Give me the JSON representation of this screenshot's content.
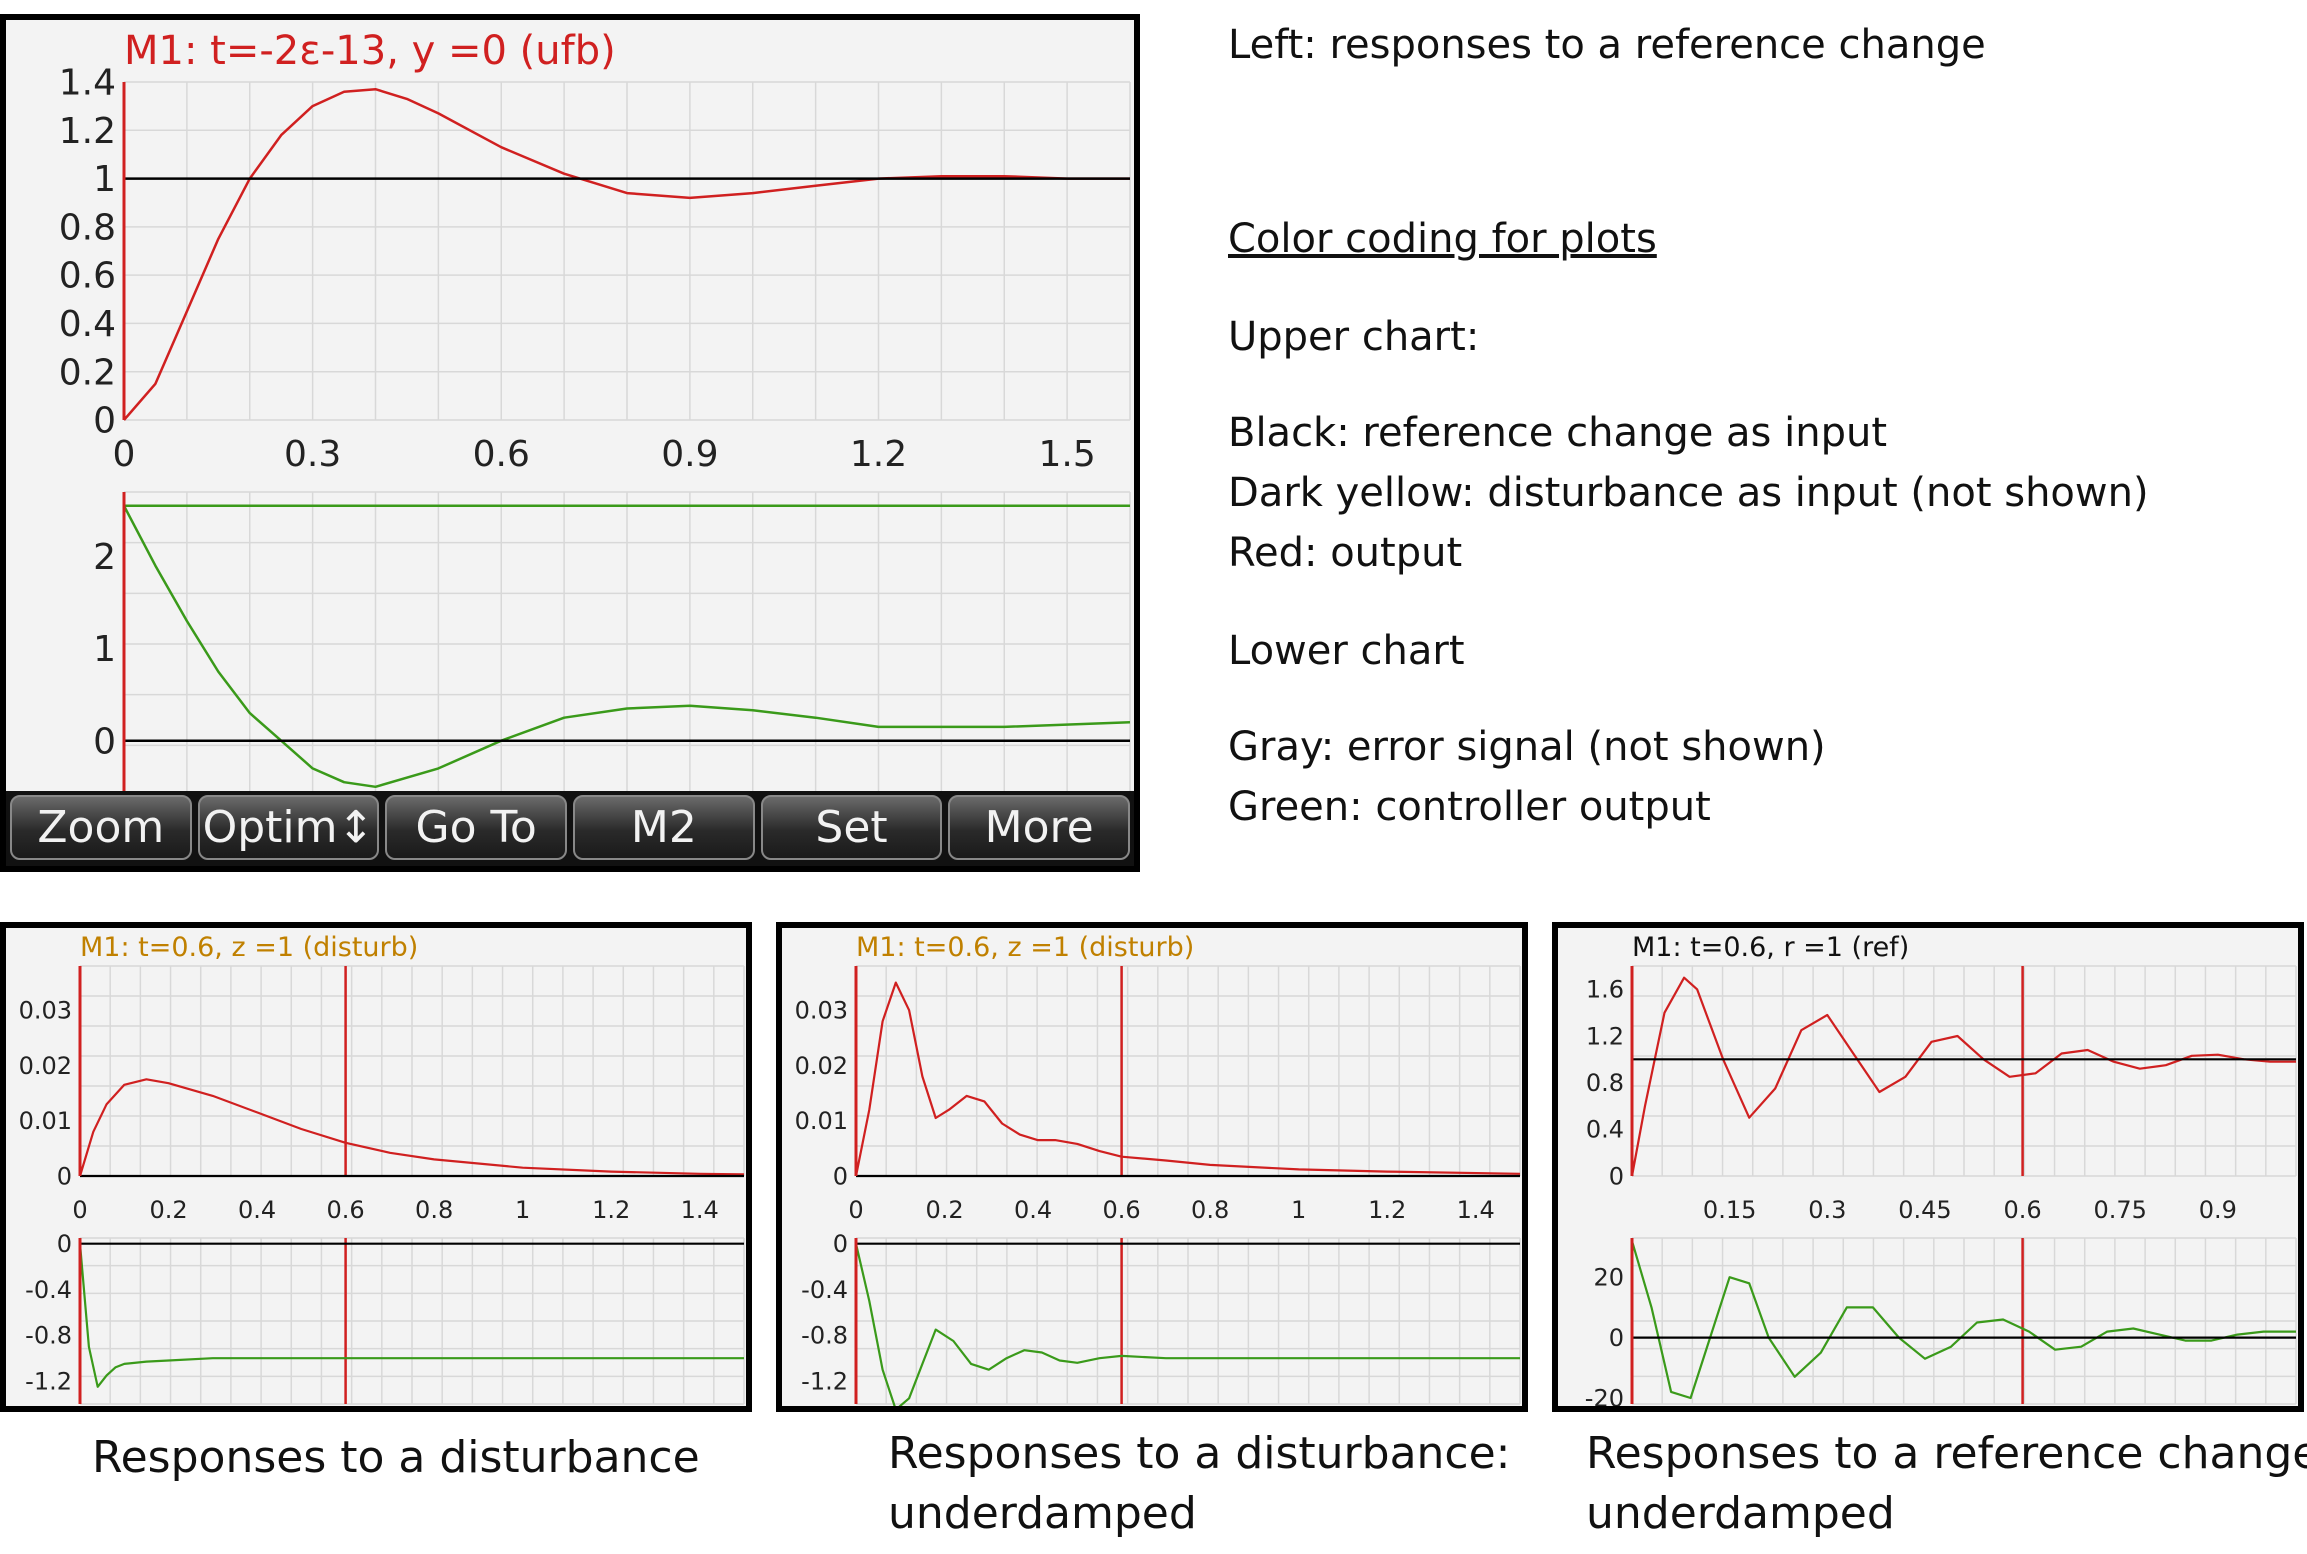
{
  "main_screen": {
    "header": "M1: t=-2ε-13, y =0 (ufb)",
    "header_color": "#d02020",
    "softkeys": [
      "Zoom",
      "Optim↕",
      "Go To",
      "M2",
      "Set",
      "More"
    ]
  },
  "legend": {
    "line1": "Left: responses to a reference change",
    "heading": "Color coding for plots",
    "upper_title": "Upper chart:",
    "black": "Black: reference change as input",
    "yellow": "Dark yellow: disturbance as input (not shown)",
    "red": "Red: output",
    "lower_title": "Lower chart",
    "gray": "Gray: error signal (not shown)",
    "green": "Green: controller output"
  },
  "captions": {
    "c1": "Responses to a disturbance",
    "c2_line1": "Responses to a disturbance:",
    "c2_line2": "underdamped",
    "c3_line1": "Responses to a reference change:",
    "c3_line2": "underdamped"
  },
  "colors": {
    "output": "#d02020",
    "controller": "#3a9a1a",
    "reference": "#000000",
    "header_yellow": "#c08000",
    "grid": "#d8d8d8"
  },
  "chart_data": [
    {
      "type": "line",
      "panel": "main-upper",
      "title": "M1: t=-2ε-13, y =0 (ufb)",
      "xlim": [
        0,
        1.6
      ],
      "ylim": [
        0,
        1.4
      ],
      "xticks": [
        "0",
        "0.3",
        "0.6",
        "0.9",
        "1.2",
        "1.5"
      ],
      "yticks": [
        "0",
        "0.2",
        "0.4",
        "0.6",
        "0.8",
        "1",
        "1.2",
        "1.4"
      ],
      "series": [
        {
          "color": "#d02020",
          "x": [
            0,
            0.05,
            0.1,
            0.15,
            0.2,
            0.25,
            0.3,
            0.35,
            0.4,
            0.45,
            0.5,
            0.6,
            0.7,
            0.8,
            0.9,
            1.0,
            1.1,
            1.2,
            1.3,
            1.4,
            1.5,
            1.6
          ],
          "y": [
            0,
            0.15,
            0.45,
            0.75,
            1.0,
            1.18,
            1.3,
            1.36,
            1.37,
            1.33,
            1.27,
            1.13,
            1.02,
            0.94,
            0.92,
            0.94,
            0.97,
            1.0,
            1.01,
            1.01,
            1.0,
            1.0
          ]
        },
        {
          "color": "#000000",
          "x": [
            0,
            1.6
          ],
          "y": [
            1,
            1
          ]
        }
      ]
    },
    {
      "type": "line",
      "panel": "main-lower",
      "xlim": [
        0,
        1.6
      ],
      "ylim": [
        -0.6,
        2.7
      ],
      "yticks": [
        "0",
        "1",
        "2"
      ],
      "series": [
        {
          "color": "#3a9a1a",
          "x": [
            0,
            0.05,
            0.1,
            0.15,
            0.2,
            0.25,
            0.3,
            0.35,
            0.4,
            0.5,
            0.6,
            0.7,
            0.8,
            0.9,
            1.0,
            1.1,
            1.2,
            1.4,
            1.6
          ],
          "y": [
            2.55,
            1.9,
            1.3,
            0.75,
            0.3,
            0.0,
            -0.3,
            -0.45,
            -0.5,
            -0.3,
            0.0,
            0.25,
            0.35,
            0.38,
            0.33,
            0.25,
            0.15,
            0.15,
            0.2
          ]
        },
        {
          "color": "#3a9a1a",
          "x": [
            0,
            1.6
          ],
          "y": [
            2.55,
            2.55
          ]
        },
        {
          "color": "#000000",
          "x": [
            0,
            1.6
          ],
          "y": [
            0,
            0
          ]
        }
      ]
    },
    {
      "type": "line",
      "panel": "panel1-upper",
      "title": "M1: t=0.6, z =1 (disturb)",
      "xlim": [
        0,
        1.5
      ],
      "ylim": [
        0,
        0.038
      ],
      "xticks": [
        "0",
        "0.2",
        "0.4",
        "0.6",
        "0.8",
        "1",
        "1.2",
        "1.4"
      ],
      "yticks": [
        "0",
        "0.01",
        "0.02",
        "0.03"
      ],
      "cursor_x": 0.6,
      "series": [
        {
          "color": "#d02020",
          "x": [
            0,
            0.03,
            0.06,
            0.1,
            0.15,
            0.2,
            0.3,
            0.4,
            0.5,
            0.6,
            0.7,
            0.8,
            1.0,
            1.2,
            1.4,
            1.5
          ],
          "y": [
            0,
            0.008,
            0.013,
            0.0165,
            0.0175,
            0.0168,
            0.0145,
            0.0115,
            0.0085,
            0.006,
            0.0042,
            0.003,
            0.0015,
            0.0008,
            0.0004,
            0.0003
          ]
        },
        {
          "color": "#000000",
          "x": [
            0,
            1.5
          ],
          "y": [
            0,
            0
          ]
        }
      ]
    },
    {
      "type": "line",
      "panel": "panel1-lower",
      "xlim": [
        0,
        1.5
      ],
      "ylim": [
        -1.4,
        0.05
      ],
      "yticks": [
        "0",
        "-0.4",
        "-0.8",
        "-1.2"
      ],
      "cursor_x": 0.6,
      "series": [
        {
          "color": "#3a9a1a",
          "x": [
            0,
            0.02,
            0.04,
            0.06,
            0.08,
            0.1,
            0.15,
            0.2,
            0.3,
            1.5
          ],
          "y": [
            0,
            -0.9,
            -1.25,
            -1.15,
            -1.08,
            -1.05,
            -1.03,
            -1.02,
            -1.0,
            -1.0
          ]
        },
        {
          "color": "#000000",
          "x": [
            0,
            1.5
          ],
          "y": [
            0,
            0
          ]
        }
      ]
    },
    {
      "type": "line",
      "panel": "panel2-upper",
      "title": "M1: t=0.6, z =1 (disturb)",
      "xlim": [
        0,
        1.5
      ],
      "ylim": [
        0,
        0.038
      ],
      "xticks": [
        "0",
        "0.2",
        "0.4",
        "0.6",
        "0.8",
        "1",
        "1.2",
        "1.4"
      ],
      "yticks": [
        "0",
        "0.01",
        "0.02",
        "0.03"
      ],
      "cursor_x": 0.6,
      "series": [
        {
          "color": "#d02020",
          "x": [
            0,
            0.03,
            0.06,
            0.09,
            0.12,
            0.15,
            0.18,
            0.21,
            0.25,
            0.29,
            0.33,
            0.37,
            0.41,
            0.45,
            0.5,
            0.55,
            0.6,
            0.7,
            0.8,
            1.0,
            1.2,
            1.5
          ],
          "y": [
            0,
            0.012,
            0.028,
            0.035,
            0.03,
            0.018,
            0.0105,
            0.012,
            0.0145,
            0.0135,
            0.0095,
            0.0075,
            0.0065,
            0.0065,
            0.0058,
            0.0045,
            0.0035,
            0.0028,
            0.002,
            0.0012,
            0.0008,
            0.0004
          ]
        },
        {
          "color": "#000000",
          "x": [
            0,
            1.5
          ],
          "y": [
            0,
            0
          ]
        }
      ]
    },
    {
      "type": "line",
      "panel": "panel2-lower",
      "xlim": [
        0,
        1.5
      ],
      "ylim": [
        -1.4,
        0.05
      ],
      "yticks": [
        "0",
        "-0.4",
        "-0.8",
        "-1.2"
      ],
      "cursor_x": 0.6,
      "series": [
        {
          "color": "#3a9a1a",
          "x": [
            0,
            0.03,
            0.06,
            0.09,
            0.12,
            0.15,
            0.18,
            0.22,
            0.26,
            0.3,
            0.34,
            0.38,
            0.42,
            0.46,
            0.5,
            0.55,
            0.6,
            0.7,
            1.5
          ],
          "y": [
            0,
            -0.5,
            -1.1,
            -1.45,
            -1.35,
            -1.05,
            -0.75,
            -0.85,
            -1.05,
            -1.1,
            -1.0,
            -0.93,
            -0.95,
            -1.02,
            -1.04,
            -1.0,
            -0.98,
            -1.0,
            -1.0
          ]
        },
        {
          "color": "#000000",
          "x": [
            0,
            1.5
          ],
          "y": [
            0,
            0
          ]
        }
      ]
    },
    {
      "type": "line",
      "panel": "panel3-upper",
      "title": "M1: t=0.6, r =1 (ref)",
      "xlim": [
        0,
        1.02
      ],
      "ylim": [
        0,
        1.8
      ],
      "xticks": [
        "0.15",
        "0.3",
        "0.45",
        "0.6",
        "0.75",
        "0.9"
      ],
      "yticks": [
        "0",
        "0.4",
        "0.8",
        "1.2",
        "1.6"
      ],
      "cursor_x": 0.6,
      "series": [
        {
          "color": "#d02020",
          "x": [
            0,
            0.02,
            0.05,
            0.08,
            0.1,
            0.14,
            0.18,
            0.22,
            0.26,
            0.3,
            0.34,
            0.38,
            0.42,
            0.46,
            0.5,
            0.54,
            0.58,
            0.62,
            0.66,
            0.7,
            0.74,
            0.78,
            0.82,
            0.86,
            0.9,
            0.94,
            0.98,
            1.02
          ],
          "y": [
            0,
            0.6,
            1.4,
            1.7,
            1.6,
            1.0,
            0.5,
            0.75,
            1.25,
            1.38,
            1.05,
            0.72,
            0.85,
            1.15,
            1.2,
            1.0,
            0.85,
            0.88,
            1.05,
            1.08,
            0.98,
            0.92,
            0.95,
            1.03,
            1.04,
            1.0,
            0.98,
            0.98
          ]
        },
        {
          "color": "#000000",
          "x": [
            0,
            1.02
          ],
          "y": [
            1,
            1
          ]
        }
      ]
    },
    {
      "type": "line",
      "panel": "panel3-lower",
      "xlim": [
        0,
        1.02
      ],
      "ylim": [
        -22,
        33
      ],
      "yticks": [
        "20",
        "0",
        "-20"
      ],
      "cursor_x": 0.6,
      "series": [
        {
          "color": "#3a9a1a",
          "x": [
            0,
            0.03,
            0.06,
            0.09,
            0.12,
            0.15,
            0.18,
            0.21,
            0.25,
            0.29,
            0.33,
            0.37,
            0.41,
            0.45,
            0.49,
            0.53,
            0.57,
            0.61,
            0.65,
            0.69,
            0.73,
            0.77,
            0.81,
            0.85,
            0.89,
            0.93,
            0.97,
            1.02
          ],
          "y": [
            32,
            10,
            -18,
            -20,
            0,
            20,
            18,
            0,
            -13,
            -5,
            10,
            10,
            0,
            -7,
            -3,
            5,
            6,
            2,
            -4,
            -3,
            2,
            3,
            1,
            -1,
            -1,
            1,
            2,
            2
          ]
        },
        {
          "color": "#000000",
          "x": [
            0,
            1.02
          ],
          "y": [
            0,
            0
          ]
        }
      ]
    }
  ]
}
